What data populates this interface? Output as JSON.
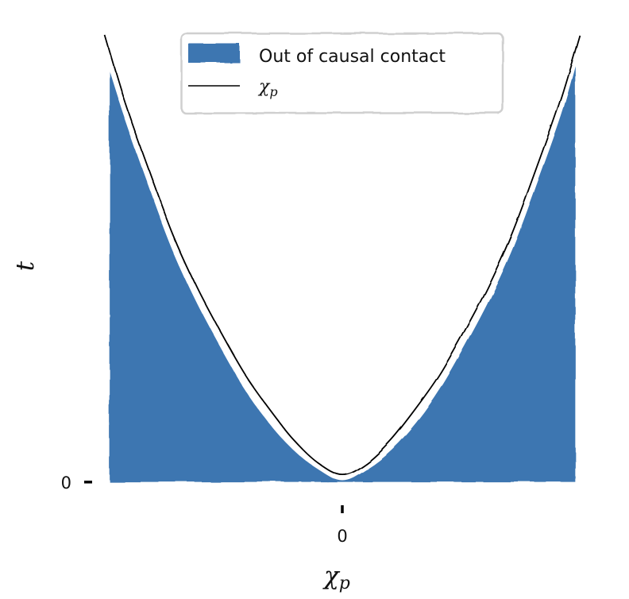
{
  "chart_data": {
    "type": "area",
    "style": "xkcd",
    "xlabel": "χ",
    "xlabel_sub": "p",
    "ylabel": "t",
    "x_ticks": [
      {
        "value": 0,
        "label": "0"
      }
    ],
    "y_ticks": [
      {
        "value": 0,
        "label": "0"
      }
    ],
    "xlim": [
      -1,
      1
    ],
    "ylim": [
      -0.04,
      1.2
    ],
    "grid": false,
    "legend": {
      "placement": "top-center",
      "entries": [
        {
          "label": "Out of causal contact",
          "kind": "fill"
        },
        {
          "label": "χ",
          "label_sub": "p",
          "kind": "line"
        }
      ]
    },
    "series": [
      {
        "kind": "fill",
        "color": "#3c76b1",
        "x": [
          -0.97,
          -0.9,
          -0.8,
          -0.7,
          -0.6,
          -0.5,
          -0.4,
          -0.3,
          -0.2,
          -0.1,
          0,
          0.1,
          0.2,
          0.3,
          0.4,
          0.5,
          0.6,
          0.7,
          0.8,
          0.9,
          0.97
        ],
        "upper": [
          1.11,
          0.97,
          0.79,
          0.62,
          0.48,
          0.36,
          0.25,
          0.16,
          0.09,
          0.04,
          0.01,
          0.04,
          0.09,
          0.16,
          0.25,
          0.36,
          0.48,
          0.62,
          0.79,
          0.97,
          1.13
        ],
        "lower": [
          -0.005,
          -0.005,
          -0.005,
          -0.005,
          -0.005,
          -0.005,
          -0.005,
          -0.005,
          -0.005,
          -0.005,
          -0.005,
          -0.005,
          -0.005,
          -0.005,
          -0.005,
          -0.005,
          -0.005,
          -0.005,
          -0.005,
          -0.005,
          -0.005
        ]
      },
      {
        "kind": "line",
        "color": "#000000",
        "x": [
          -0.98,
          -0.9,
          -0.8,
          -0.7,
          -0.6,
          -0.5,
          -0.4,
          -0.3,
          -0.2,
          -0.1,
          0,
          0.1,
          0.2,
          0.3,
          0.4,
          0.5,
          0.6,
          0.7,
          0.8,
          0.9,
          0.98
        ],
        "y": [
          1.17,
          1.0,
          0.82,
          0.65,
          0.51,
          0.39,
          0.28,
          0.19,
          0.11,
          0.05,
          0.02,
          0.05,
          0.11,
          0.19,
          0.28,
          0.39,
          0.51,
          0.65,
          0.82,
          1.0,
          1.17
        ]
      }
    ]
  }
}
